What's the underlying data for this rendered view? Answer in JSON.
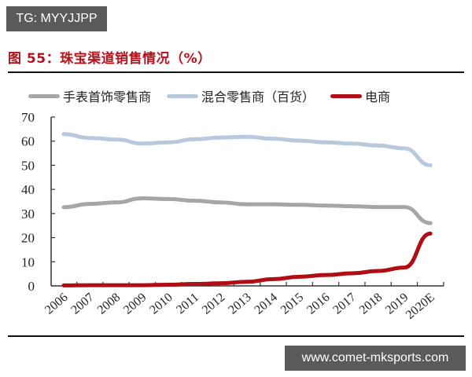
{
  "watermark_top": "TG: MYYJJPP",
  "watermark_bottom": "www.comet-mksports.com",
  "figure_title": "图 55：珠宝渠道销售情况（%）",
  "legend": [
    {
      "label": "手表首饰零售商",
      "color": "#a6a6a6"
    },
    {
      "label": "混合零售商（百货）",
      "color": "#b8c9dd"
    },
    {
      "label": "电商",
      "color": "#b00d15"
    }
  ],
  "chart_data": {
    "type": "line",
    "title": "图 55：珠宝渠道销售情况（%）",
    "xlabel": "",
    "ylabel": "",
    "x": [
      "2006",
      "2007",
      "2008",
      "2009",
      "2010",
      "2011",
      "2012",
      "2013",
      "2014",
      "2015",
      "2016",
      "2017",
      "2018",
      "2019",
      "2020E"
    ],
    "yticks": [
      0,
      10,
      20,
      30,
      40,
      50,
      60,
      70
    ],
    "ylim": [
      0,
      70
    ],
    "grid": false,
    "legend_position": "top",
    "series": [
      {
        "name": "手表首饰零售商",
        "color": "#a6a6a6",
        "values": [
          32.6,
          34.0,
          34.6,
          36.3,
          36.0,
          35.3,
          34.6,
          33.8,
          33.8,
          33.6,
          33.3,
          33.0,
          32.7,
          32.7,
          26.0
        ]
      },
      {
        "name": "混合零售商（百货）",
        "color": "#b8c9dd",
        "values": [
          62.9,
          61.3,
          60.7,
          59.0,
          59.5,
          60.8,
          61.5,
          61.8,
          61.0,
          60.2,
          59.5,
          59.0,
          58.2,
          57.0,
          50.0
        ]
      },
      {
        "name": "电商",
        "color": "#b00d15",
        "values": [
          0.2,
          0.3,
          0.3,
          0.3,
          0.5,
          0.8,
          1.1,
          1.7,
          2.8,
          3.8,
          4.5,
          5.2,
          6.2,
          7.6,
          21.7
        ]
      }
    ]
  }
}
